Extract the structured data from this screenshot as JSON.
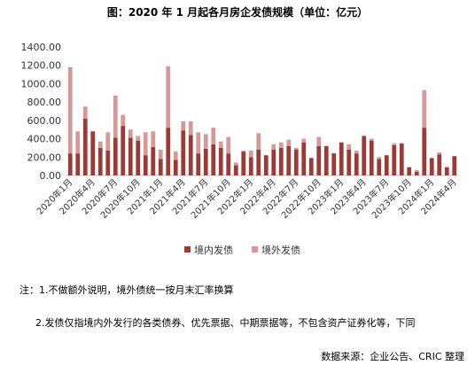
{
  "chart_data": {
    "type": "stacked_bar",
    "title": "图：2020 年 1 月起各月房企发债规模（单位：亿元）",
    "categories": [
      "2020年1月",
      null,
      null,
      "2020年4月",
      null,
      null,
      "2020年7月",
      null,
      null,
      "2020年10月",
      null,
      null,
      "2021年1月",
      null,
      null,
      "2021年4月",
      null,
      null,
      "2021年7月",
      null,
      null,
      "2021年10月",
      null,
      null,
      "2022年1月",
      null,
      null,
      "2022年4月",
      null,
      null,
      "2022年7月",
      null,
      null,
      "2022年10月",
      null,
      null,
      "2023年1月",
      null,
      null,
      "2023年4月",
      null,
      null,
      "2023年7月",
      null,
      null,
      "2023年10月",
      null,
      null,
      "2024年1月",
      null,
      null,
      "2024年4月"
    ],
    "series": [
      {
        "name": "境内发债",
        "color": "#9e3a35",
        "values": [
          240,
          240,
          620,
          480,
          300,
          270,
          410,
          540,
          410,
          380,
          220,
          310,
          180,
          520,
          170,
          490,
          440,
          240,
          290,
          340,
          300,
          240,
          110,
          260,
          200,
          280,
          220,
          280,
          300,
          320,
          280,
          360,
          190,
          320,
          320,
          240,
          360,
          280,
          240,
          430,
          380,
          180,
          220,
          330,
          350,
          90,
          40,
          520,
          190,
          230,
          90,
          210
        ]
      },
      {
        "name": "境外发债",
        "color": "#d59a98",
        "values": [
          940,
          240,
          130,
          0,
          70,
          200,
          460,
          120,
          90,
          50,
          250,
          170,
          100,
          670,
          90,
          100,
          150,
          230,
          160,
          180,
          70,
          180,
          30,
          10,
          70,
          180,
          0,
          60,
          60,
          70,
          20,
          40,
          0,
          100,
          0,
          0,
          0,
          60,
          30,
          0,
          20,
          20,
          0,
          20,
          0,
          0,
          20,
          410,
          0,
          20,
          0,
          0
        ]
      }
    ],
    "ylim": [
      0,
      1400
    ],
    "yticks": [
      {
        "value": 0,
        "label": "0.00"
      },
      {
        "value": 200,
        "label": "200.00"
      },
      {
        "value": 400,
        "label": "400.00"
      },
      {
        "value": 600,
        "label": "600.00"
      },
      {
        "value": 800,
        "label": "800.00"
      },
      {
        "value": 1000,
        "label": "1000.00"
      },
      {
        "value": 1200,
        "label": "1200.00"
      },
      {
        "value": 1400,
        "label": "1400.00"
      }
    ],
    "legend": "bottom"
  },
  "notes": [
    "注：1.不做额外说明，境外债统一按月末汇率换算",
    "2.发债仅指境内外发行的各类债券、优先票据、中期票据等，不包含资产证券化等，下同"
  ],
  "source": "数据来源：企业公告、CRIC 整理"
}
